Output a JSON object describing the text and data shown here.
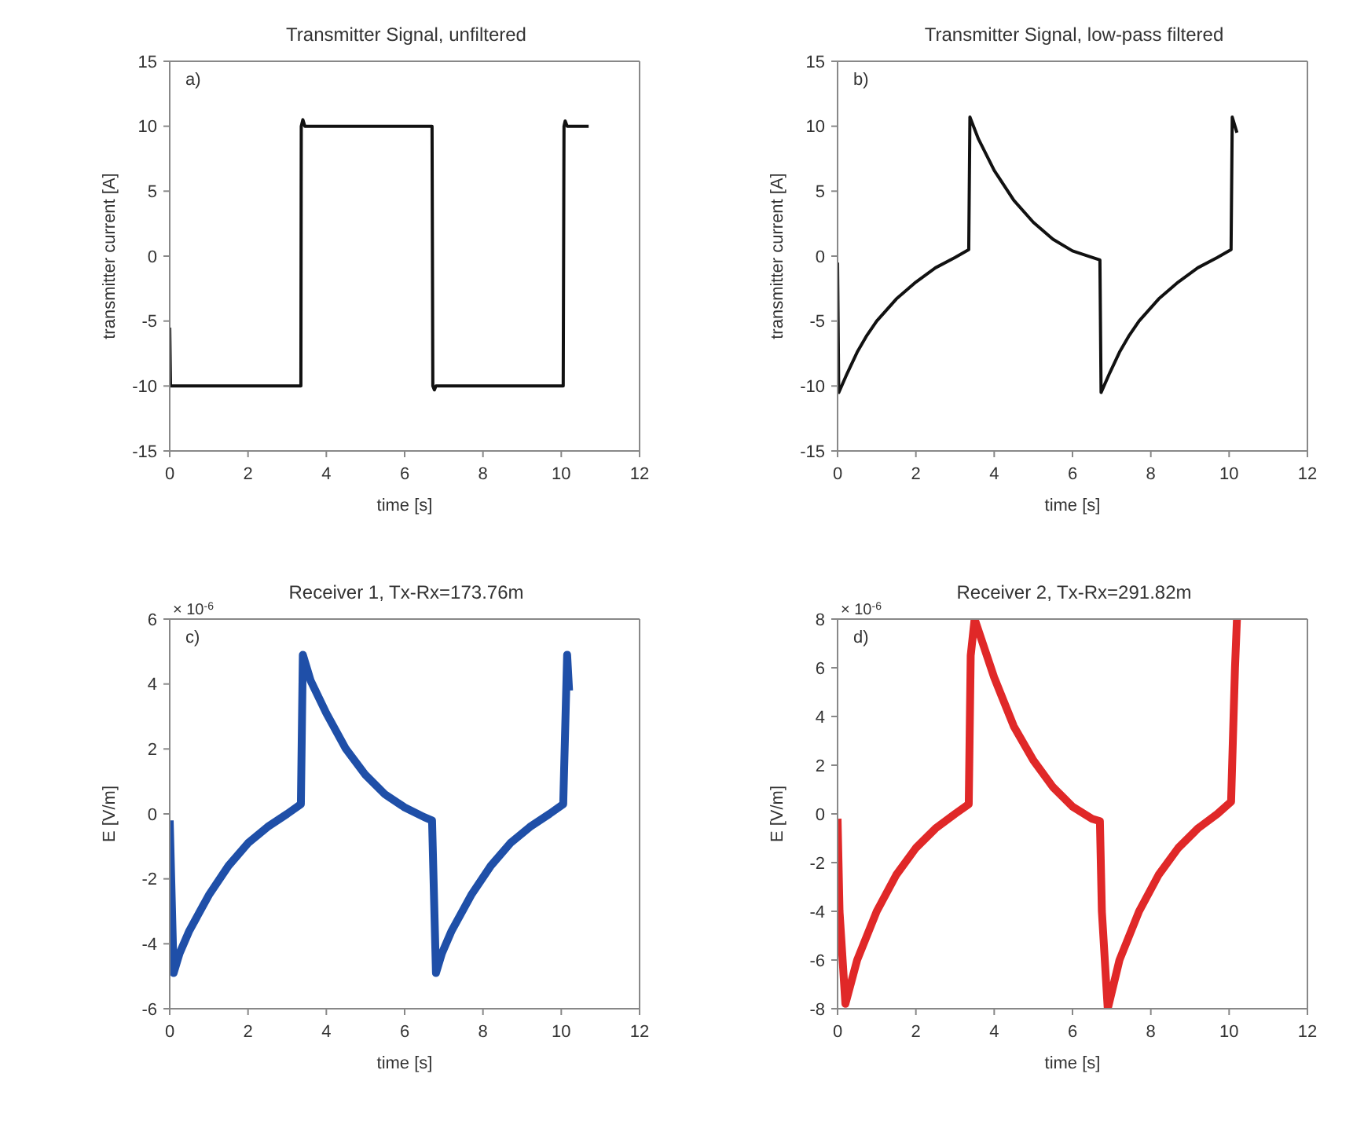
{
  "chart_data": [
    {
      "type": "line",
      "title": "Transmitter Signal,  unfiltered",
      "xlabel": "time [s]",
      "ylabel": "transmitter current [A]",
      "annotations": [
        "a)"
      ],
      "xlim": [
        0,
        12
      ],
      "xticks": [
        0,
        2,
        4,
        6,
        8,
        10,
        12
      ],
      "ylim": [
        -15,
        15
      ],
      "yticks": [
        -15,
        -10,
        -5,
        0,
        5,
        10,
        15
      ],
      "grid": false,
      "legend": false,
      "marker": "none",
      "line_style": "solid",
      "series": [
        {
          "color": "#111111",
          "x": [
            0,
            0.02,
            0.05,
            3.35,
            3.36,
            3.4,
            3.45,
            6.7,
            6.72,
            6.76,
            6.8,
            10.05,
            10.07,
            10.1,
            10.15,
            10.7
          ],
          "values": [
            -5.5,
            -10,
            -10,
            -10,
            10,
            10.5,
            10,
            10,
            -10,
            -10.3,
            -10,
            -10,
            10,
            10.4,
            10,
            10
          ]
        }
      ]
    },
    {
      "type": "line",
      "title": "Transmitter Signal, low-pass filtered",
      "xlabel": "time [s]",
      "ylabel": "transmitter current [A]",
      "annotations": [
        "b)"
      ],
      "xlim": [
        0,
        12
      ],
      "xticks": [
        0,
        2,
        4,
        6,
        8,
        10,
        12
      ],
      "ylim": [
        -15,
        15
      ],
      "yticks": [
        -15,
        -10,
        -5,
        0,
        5,
        10,
        15
      ],
      "grid": false,
      "legend": false,
      "marker": "none",
      "line_style": "solid",
      "series": [
        {
          "color": "#111111",
          "x": [
            0,
            0.03,
            0.25,
            0.5,
            0.75,
            1,
            1.5,
            2,
            2.5,
            3,
            3.35,
            3.38,
            3.6,
            4,
            4.5,
            5,
            5.5,
            6,
            6.5,
            6.7,
            6.73,
            6.95,
            7.2,
            7.45,
            7.7,
            8.2,
            8.7,
            9.2,
            9.7,
            10.05,
            10.08,
            10.2
          ],
          "values": [
            -0.5,
            -10.5,
            -9,
            -7.4,
            -6.1,
            -5,
            -3.3,
            -2,
            -0.9,
            -0.1,
            0.5,
            10.7,
            9,
            6.6,
            4.3,
            2.6,
            1.3,
            0.4,
            -0.1,
            -0.3,
            -10.5,
            -9,
            -7.4,
            -6.1,
            -5,
            -3.3,
            -2,
            -0.9,
            -0.1,
            0.5,
            10.7,
            9.5
          ]
        }
      ]
    },
    {
      "type": "line",
      "title": "Receiver 1, Tx-Rx=173.76m",
      "xlabel": "time [s]",
      "ylabel": "E [V/m]",
      "annotations": [
        "× 10$^{-6}$",
        "c)"
      ],
      "xlim": [
        0,
        12
      ],
      "xticks": [
        0,
        2,
        4,
        6,
        8,
        10,
        12
      ],
      "ylim": [
        -6,
        6
      ],
      "yticks": [
        -6,
        -4,
        -2,
        0,
        2,
        4,
        6
      ],
      "grid": false,
      "legend": false,
      "marker": "none",
      "line_style": "solid",
      "series": [
        {
          "color": "#1f4fa8",
          "x": [
            0,
            0.1,
            0.25,
            0.5,
            1,
            1.5,
            2,
            2.5,
            3,
            3.35,
            3.4,
            3.6,
            4,
            4.5,
            5,
            5.5,
            6,
            6.5,
            6.7,
            6.8,
            6.95,
            7.2,
            7.7,
            8.2,
            8.7,
            9.2,
            9.7,
            10.05,
            10.15,
            10.2
          ],
          "values": [
            -0.2,
            -4.9,
            -4.3,
            -3.6,
            -2.5,
            -1.6,
            -0.9,
            -0.4,
            0,
            0.3,
            4.9,
            4.1,
            3.1,
            2,
            1.2,
            0.6,
            0.2,
            -0.1,
            -0.2,
            -4.9,
            -4.3,
            -3.6,
            -2.5,
            -1.6,
            -0.9,
            -0.4,
            0,
            0.3,
            4.9,
            3.8
          ]
        }
      ]
    },
    {
      "type": "line",
      "title": "Receiver 2, Tx-Rx=291.82m",
      "xlabel": "time [s]",
      "ylabel": "E [V/m]",
      "annotations": [
        "× 10$^{-6}$",
        "d)"
      ],
      "xlim": [
        0,
        12
      ],
      "xticks": [
        0,
        2,
        4,
        6,
        8,
        10,
        12
      ],
      "ylim": [
        -8,
        8
      ],
      "yticks": [
        -8,
        -6,
        -4,
        -2,
        0,
        2,
        4,
        6,
        8
      ],
      "grid": false,
      "legend": false,
      "marker": "none",
      "line_style": "solid",
      "series": [
        {
          "color": "#e02828",
          "x": [
            0,
            0.05,
            0.2,
            0.5,
            1,
            1.5,
            2,
            2.5,
            3,
            3.35,
            3.4,
            3.5,
            4,
            4.5,
            5,
            5.5,
            6,
            6.5,
            6.7,
            6.75,
            6.9,
            7.2,
            7.7,
            8.2,
            8.7,
            9.2,
            9.7,
            10.05,
            10.15,
            10.2
          ],
          "values": [
            -0.2,
            -4,
            -7.8,
            -6,
            -4,
            -2.5,
            -1.4,
            -0.6,
            0,
            0.4,
            6.5,
            8,
            5.6,
            3.6,
            2.2,
            1.1,
            0.3,
            -0.2,
            -0.3,
            -4,
            -8,
            -6,
            -4,
            -2.5,
            -1.4,
            -0.6,
            0,
            0.5,
            6,
            8
          ]
        }
      ]
    }
  ]
}
